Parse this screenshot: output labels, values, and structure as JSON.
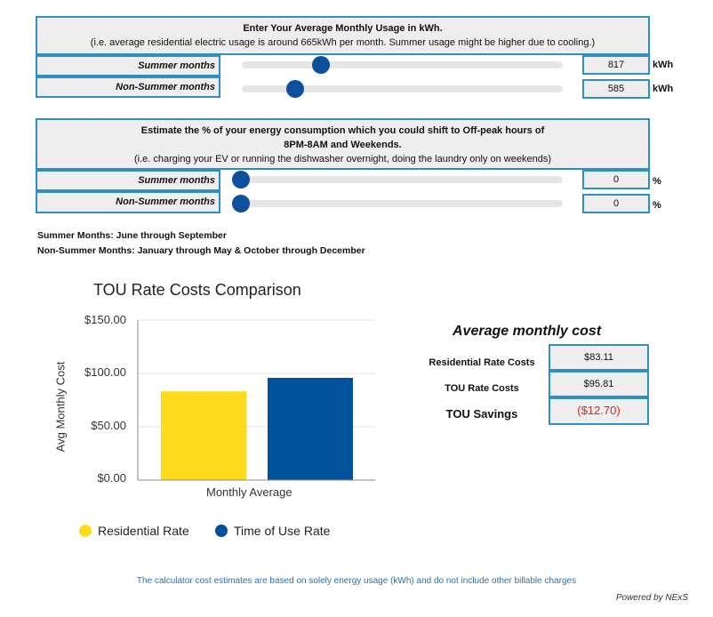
{
  "usage": {
    "heading": "Enter Your Average Monthly Usage in kWh.",
    "subheading": "(i.e. average residential electric usage is around 665kWh per month. Summer usage might be higher due to cooling.)",
    "rows": [
      {
        "label": "Summer months",
        "value": "817",
        "unit": "kWh",
        "slider_fraction": 0.24
      },
      {
        "label": "Non-Summer months",
        "value": "585",
        "unit": "kWh",
        "slider_fraction": 0.16
      }
    ]
  },
  "shift": {
    "heading_line1": "Estimate the % of your energy consumption which you could shift to Off-peak hours of",
    "heading_line2": "8PM-8AM and Weekends.",
    "subheading": "(i.e. charging your EV or running the dishwasher overnight, doing the laundry only on weekends)",
    "rows": [
      {
        "label": "Summer months",
        "value": "0",
        "unit": "%",
        "slider_fraction": 0
      },
      {
        "label": "Non-Summer months",
        "value": "0",
        "unit": "%",
        "slider_fraction": 0
      }
    ]
  },
  "notes": {
    "summer": "Summer Months: June through September",
    "nonsummer": "Non-Summer Months: January through May & October through December"
  },
  "chart_data": {
    "type": "bar",
    "title": "TOU Rate Costs Comparison",
    "xlabel": "Monthly Average",
    "ylabel": "Avg Monthly Cost",
    "categories": [
      "Monthly Average"
    ],
    "series": [
      {
        "name": "Residential Rate",
        "values": [
          83.11
        ],
        "color": "#fddb1b"
      },
      {
        "name": "Time of Use Rate",
        "values": [
          95.81
        ],
        "color": "#00529b"
      }
    ],
    "ylim": [
      0,
      150
    ],
    "yticks": [
      "$0.00",
      "$50.00",
      "$100.00",
      "$150.00"
    ],
    "legend": "bottom",
    "grid": true
  },
  "costs": {
    "title": "Average monthly cost",
    "residential_label": "Residential Rate Costs",
    "residential_value": "$83.11",
    "tou_label": "TOU Rate Costs",
    "tou_value": "$95.81",
    "savings_label": "TOU Savings",
    "savings_value": "($12.70)",
    "savings_color": "#e02020"
  },
  "footer": {
    "disclaimer": "The calculator cost estimates are based on solely energy usage (kWh) and do not include other billable charges",
    "powered": "Powered by NExS"
  }
}
